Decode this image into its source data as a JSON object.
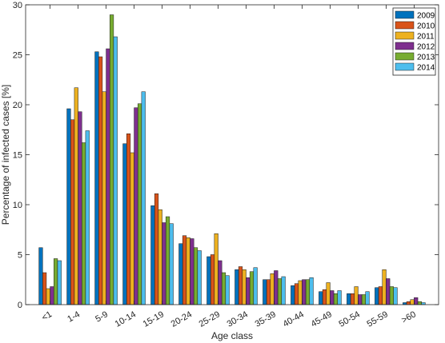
{
  "chart_data": {
    "type": "bar",
    "title": "",
    "xlabel": "Age class",
    "ylabel": "Percentage of infected cases [%]",
    "ylim": [
      0,
      30
    ],
    "yticks": [
      0,
      5,
      10,
      15,
      20,
      25,
      30
    ],
    "grid": false,
    "legend_position": "top-right",
    "categories": [
      "<1",
      "1-4",
      "5-9",
      "10-14",
      "15-19",
      "20-24",
      "25-29",
      "30-34",
      "35-39",
      "40-44",
      "45-49",
      "50-54",
      "55-59",
      ">60"
    ],
    "series": [
      {
        "name": "2009",
        "color": "#0072BD",
        "values": [
          5.7,
          19.6,
          25.3,
          16.1,
          9.9,
          6.1,
          4.8,
          3.5,
          2.5,
          1.9,
          1.3,
          1.1,
          1.7,
          0.2
        ]
      },
      {
        "name": "2010",
        "color": "#D95319",
        "values": [
          3.2,
          18.5,
          24.8,
          17.1,
          11.1,
          6.9,
          5.0,
          3.8,
          2.5,
          2.1,
          1.5,
          1.1,
          1.8,
          0.3
        ]
      },
      {
        "name": "2011",
        "color": "#EDB120",
        "values": [
          1.6,
          21.7,
          21.3,
          15.2,
          9.5,
          6.7,
          7.1,
          3.5,
          3.1,
          2.4,
          2.2,
          1.8,
          3.5,
          0.5
        ]
      },
      {
        "name": "2012",
        "color": "#7E2F8E",
        "values": [
          1.8,
          19.3,
          25.6,
          19.7,
          8.2,
          6.6,
          4.4,
          2.7,
          3.4,
          2.5,
          1.4,
          1.0,
          2.6,
          0.7
        ]
      },
      {
        "name": "2013",
        "color": "#77AC30",
        "values": [
          4.6,
          16.2,
          29.0,
          20.1,
          8.8,
          5.7,
          3.2,
          3.3,
          2.6,
          2.5,
          1.1,
          1.0,
          1.8,
          0.3
        ]
      },
      {
        "name": "2014",
        "color": "#4DBEEE",
        "values": [
          4.4,
          17.4,
          26.8,
          21.3,
          8.1,
          5.4,
          2.9,
          3.7,
          2.8,
          2.7,
          1.4,
          1.3,
          1.7,
          0.2
        ]
      }
    ]
  }
}
